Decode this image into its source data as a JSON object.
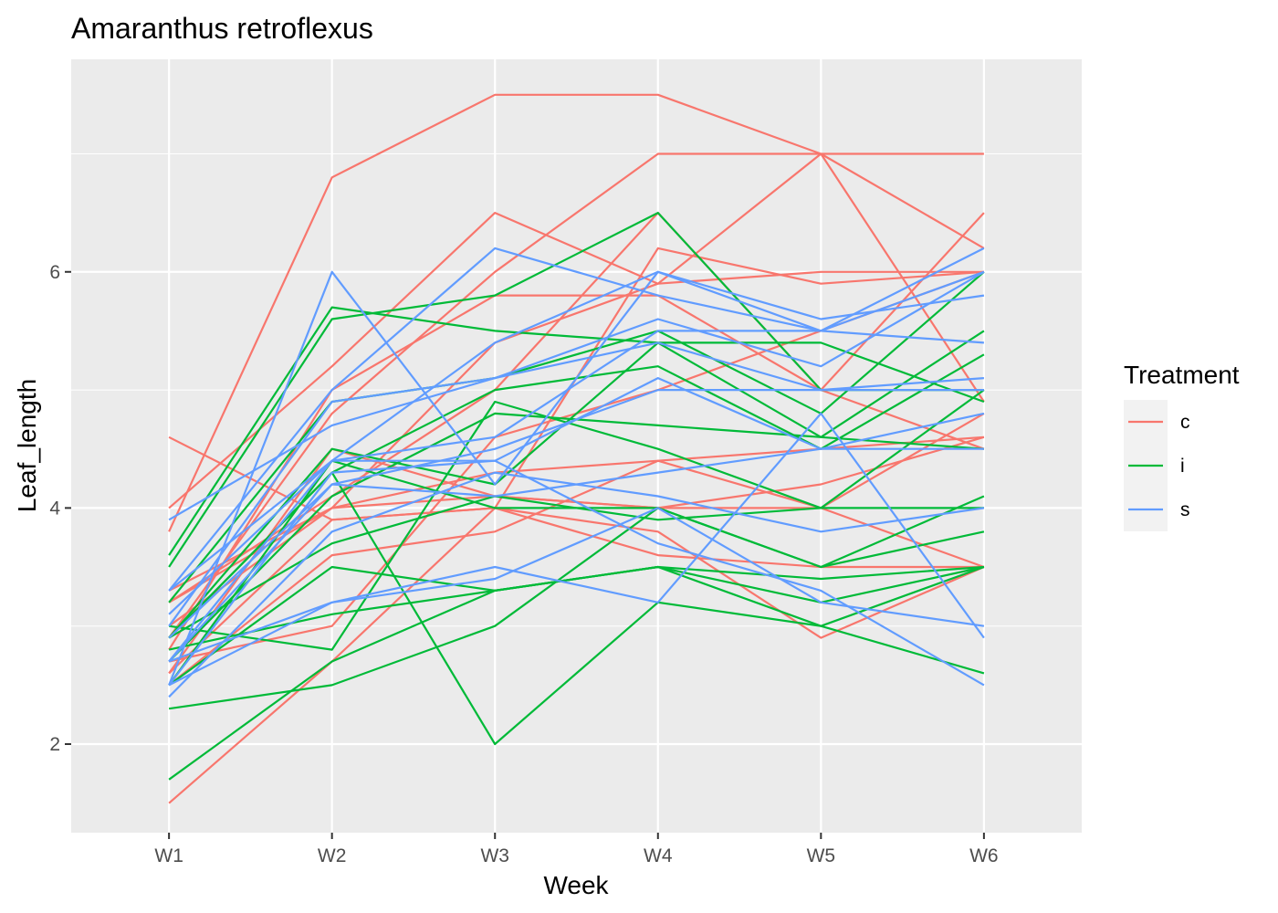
{
  "chart_data": {
    "type": "line",
    "title": "Amaranthus retroflexus",
    "xlabel": "Week",
    "ylabel": "Leaf_length",
    "categories": [
      "W1",
      "W2",
      "W3",
      "W4",
      "W5",
      "W6"
    ],
    "ylim": [
      1.25,
      7.8
    ],
    "yticks": [
      2,
      4,
      6
    ],
    "grid": true,
    "legend": {
      "title": "Treatment",
      "position": "right",
      "entries": [
        {
          "label": "c",
          "color": "#F8766D"
        },
        {
          "label": "i",
          "color": "#00BA38"
        },
        {
          "label": "s",
          "color": "#619CFF"
        }
      ]
    },
    "series": [
      {
        "group": "c",
        "values": [
          3.8,
          6.8,
          7.5,
          7.5,
          7.0,
          7.0
        ]
      },
      {
        "group": "c",
        "values": [
          4.0,
          5.2,
          6.5,
          5.9,
          7.0,
          6.2
        ]
      },
      {
        "group": "c",
        "values": [
          2.9,
          4.8,
          6.0,
          7.0,
          7.0,
          4.9
        ]
      },
      {
        "group": "c",
        "values": [
          4.6,
          3.9,
          4.0,
          6.2,
          5.9,
          6.0
        ]
      },
      {
        "group": "c",
        "values": [
          3.3,
          4.0,
          5.4,
          5.9,
          6.0,
          6.0
        ]
      },
      {
        "group": "c",
        "values": [
          2.8,
          5.0,
          5.8,
          5.8,
          5.0,
          6.5
        ]
      },
      {
        "group": "c",
        "values": [
          3.2,
          4.1,
          5.0,
          6.5,
          5.0,
          4.5
        ]
      },
      {
        "group": "c",
        "values": [
          2.7,
          3.0,
          4.6,
          5.0,
          5.5,
          6.0
        ]
      },
      {
        "group": "c",
        "values": [
          3.0,
          4.0,
          4.3,
          4.4,
          4.5,
          4.6
        ]
      },
      {
        "group": "c",
        "values": [
          2.5,
          3.6,
          3.8,
          4.4,
          4.0,
          4.8
        ]
      },
      {
        "group": "c",
        "values": [
          3.2,
          4.0,
          4.1,
          4.0,
          4.0,
          3.5
        ]
      },
      {
        "group": "c",
        "values": [
          2.6,
          3.9,
          4.0,
          3.8,
          2.9,
          3.5
        ]
      },
      {
        "group": "c",
        "values": [
          1.5,
          2.7,
          4.0,
          3.6,
          3.5,
          3.5
        ]
      },
      {
        "group": "c",
        "values": [
          2.6,
          4.5,
          4.1,
          4.0,
          4.2,
          4.6
        ]
      },
      {
        "group": "i",
        "values": [
          3.5,
          5.6,
          5.8,
          6.5,
          5.0,
          5.0
        ]
      },
      {
        "group": "i",
        "values": [
          3.6,
          5.7,
          5.5,
          5.4,
          5.4,
          4.9
        ]
      },
      {
        "group": "i",
        "values": [
          3.2,
          4.9,
          5.1,
          5.5,
          4.8,
          6.0
        ]
      },
      {
        "group": "i",
        "values": [
          2.9,
          4.5,
          4.2,
          5.4,
          4.6,
          5.5
        ]
      },
      {
        "group": "i",
        "values": [
          2.9,
          4.3,
          5.0,
          5.2,
          4.5,
          5.3
        ]
      },
      {
        "group": "i",
        "values": [
          2.7,
          4.1,
          4.8,
          4.7,
          4.6,
          4.5
        ]
      },
      {
        "group": "i",
        "values": [
          3.0,
          2.8,
          4.9,
          4.5,
          4.0,
          5.0
        ]
      },
      {
        "group": "i",
        "values": [
          2.5,
          4.4,
          4.0,
          4.0,
          3.5,
          3.8
        ]
      },
      {
        "group": "i",
        "values": [
          2.9,
          3.7,
          4.1,
          3.9,
          4.0,
          4.0
        ]
      },
      {
        "group": "i",
        "values": [
          2.5,
          3.5,
          3.3,
          3.5,
          3.4,
          3.5
        ]
      },
      {
        "group": "i",
        "values": [
          2.3,
          2.5,
          3.0,
          4.0,
          3.5,
          4.1
        ]
      },
      {
        "group": "i",
        "values": [
          2.8,
          3.1,
          3.3,
          3.5,
          3.2,
          3.5
        ]
      },
      {
        "group": "i",
        "values": [
          1.7,
          2.7,
          3.3,
          3.5,
          3.0,
          2.6
        ]
      },
      {
        "group": "i",
        "values": [
          2.9,
          4.3,
          2.0,
          3.2,
          3.0,
          3.5
        ]
      },
      {
        "group": "s",
        "values": [
          2.5,
          6.0,
          4.2,
          6.0,
          5.5,
          6.2
        ]
      },
      {
        "group": "s",
        "values": [
          3.3,
          5.0,
          6.2,
          5.8,
          5.5,
          6.0
        ]
      },
      {
        "group": "s",
        "values": [
          3.1,
          4.4,
          5.4,
          6.0,
          5.6,
          5.8
        ]
      },
      {
        "group": "s",
        "values": [
          3.0,
          4.9,
          5.1,
          5.6,
          5.2,
          6.0
        ]
      },
      {
        "group": "s",
        "values": [
          2.7,
          4.4,
          4.6,
          5.5,
          5.5,
          5.4
        ]
      },
      {
        "group": "s",
        "values": [
          3.9,
          4.7,
          5.1,
          5.4,
          5.0,
          5.1
        ]
      },
      {
        "group": "s",
        "values": [
          2.7,
          4.2,
          4.5,
          5.0,
          5.0,
          5.0
        ]
      },
      {
        "group": "s",
        "values": [
          2.5,
          4.3,
          4.4,
          5.1,
          4.5,
          4.8
        ]
      },
      {
        "group": "s",
        "values": [
          2.9,
          4.2,
          4.1,
          4.3,
          4.5,
          4.5
        ]
      },
      {
        "group": "s",
        "values": [
          2.4,
          3.8,
          4.3,
          4.1,
          3.8,
          4.0
        ]
      },
      {
        "group": "s",
        "values": [
          3.3,
          4.4,
          4.4,
          3.7,
          3.3,
          2.5
        ]
      },
      {
        "group": "s",
        "values": [
          2.5,
          3.2,
          3.5,
          3.2,
          4.8,
          2.9
        ]
      },
      {
        "group": "s",
        "values": [
          2.7,
          3.2,
          3.4,
          4.0,
          3.2,
          3.0
        ]
      }
    ]
  }
}
